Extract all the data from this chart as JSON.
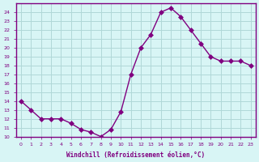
{
  "hours": [
    0,
    1,
    2,
    3,
    4,
    5,
    6,
    7,
    8,
    9,
    10,
    11,
    12,
    13,
    14,
    15,
    16,
    17,
    18,
    19,
    20,
    21,
    22,
    23
  ],
  "values": [
    14,
    13,
    12,
    12,
    12,
    11.5,
    10.8,
    10.5,
    10,
    10.8,
    12.8,
    17,
    20,
    21.5,
    24,
    24.5,
    23.5,
    22,
    20.5,
    19,
    18.5,
    18.5,
    18.5,
    18
  ],
  "line_color": "#800080",
  "marker": "D",
  "marker_size": 3,
  "bg_color": "#d8f5f5",
  "grid_color": "#b0d8d8",
  "xlabel": "Windchill (Refroidissement éolien,°C)",
  "xlabel_color": "#800080",
  "ylabel_color": "#800080",
  "tick_color": "#800080",
  "ylim": [
    10,
    25
  ],
  "yticks": [
    10,
    11,
    12,
    13,
    14,
    15,
    16,
    17,
    18,
    19,
    20,
    21,
    22,
    23,
    24
  ],
  "title_bg": "#800080",
  "title_text_color": "#ffffff",
  "border_color": "#800080"
}
